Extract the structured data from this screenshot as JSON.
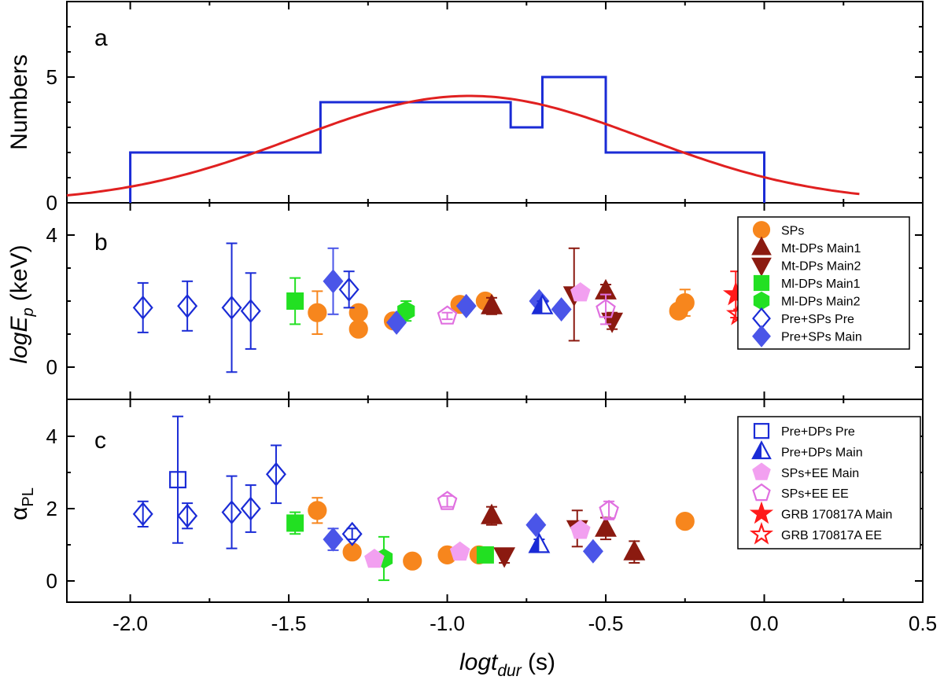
{
  "chart_data": {
    "type": "scatter",
    "x_axis": {
      "label_main": "logt",
      "label_sub": "dur",
      "label_unit": " (s)",
      "range": [
        -2.2,
        0.5
      ],
      "ticks": [
        -2.0,
        -1.5,
        -1.0,
        -0.5,
        0.0,
        0.5
      ],
      "tick_labels": [
        "-2.0",
        "-1.5",
        "-1.0",
        "-0.5",
        "0.0",
        "0.5"
      ]
    },
    "panels": [
      {
        "letter": "a",
        "ylabel": "Numbers",
        "ylim": [
          0,
          8
        ],
        "yticks": [
          0,
          5
        ],
        "histogram": {
          "color": "#1a2bd6",
          "edges": [
            -2.0,
            -1.4,
            -0.8,
            -0.7,
            -0.5,
            0.0
          ],
          "counts": [
            2,
            4,
            3,
            5,
            2
          ]
        },
        "gaussian_fit": {
          "color": "#e02020",
          "amplitude": 4.25,
          "mean": -0.93,
          "sigma": 0.55,
          "x_range": [
            -2.2,
            0.3
          ]
        }
      },
      {
        "letter": "b",
        "ylabel_main": "logE",
        "ylabel_sub": "p",
        "ylabel_unit": " (keV)",
        "ylim": [
          -1,
          5
        ],
        "yticks": [
          0,
          4
        ],
        "legend": [
          "SPs",
          "Mt-DPs Main1",
          "Mt-DPs Main2",
          "Ml-DPs Main1",
          "Ml-DPs Main2",
          "Pre+SPs Pre",
          "Pre+SPs Main"
        ]
      },
      {
        "letter": "c",
        "ylabel_main": "α",
        "ylabel_sub": "PL",
        "ylim": [
          -0.6,
          5
        ],
        "yticks": [
          0,
          2,
          4
        ],
        "legend": [
          "Pre+DPs Pre",
          "Pre+DPs Main",
          "SPs+EE Main",
          "SPs+EE  EE",
          "GRB 170817A Main",
          "GRB 170817A EE"
        ]
      }
    ],
    "series": [
      {
        "name": "SPs",
        "marker": "circle",
        "fill": "#f7861d",
        "stroke": "#f7861d",
        "b": [
          [
            -1.41,
            1.65,
            0.65
          ],
          [
            -1.28,
            1.65,
            0
          ],
          [
            -1.28,
            1.15,
            0
          ],
          [
            -1.17,
            1.4,
            0
          ],
          [
            -0.96,
            1.9,
            0
          ],
          [
            -0.88,
            2.0,
            0
          ],
          [
            -0.27,
            1.7,
            0
          ],
          [
            -0.25,
            1.95,
            0.4
          ]
        ],
        "c": [
          [
            -1.41,
            1.95,
            0.35
          ],
          [
            -1.3,
            0.8,
            0
          ],
          [
            -1.11,
            0.55,
            0
          ],
          [
            -1.0,
            0.72,
            0
          ],
          [
            -0.9,
            0.72,
            0
          ],
          [
            -0.25,
            1.65,
            0
          ]
        ]
      },
      {
        "name": "Mt-DPs Main1",
        "marker": "triangle-up",
        "fill": "#8b1a10",
        "stroke": "#8b1a10",
        "b": [
          [
            -0.86,
            1.85,
            0.25
          ],
          [
            -0.5,
            2.3,
            0.2
          ]
        ],
        "c": [
          [
            -0.86,
            1.8,
            0.25
          ],
          [
            -0.5,
            1.45,
            0.3
          ],
          [
            -0.41,
            0.8,
            0.3
          ]
        ]
      },
      {
        "name": "Mt-DPs Main2",
        "marker": "triangle-down",
        "fill": "#8b1a10",
        "stroke": "#8b1a10",
        "b": [
          [
            -0.6,
            2.2,
            1.4
          ],
          [
            -0.48,
            1.4,
            0.25
          ]
        ],
        "c": [
          [
            -0.82,
            0.7,
            0.2
          ],
          [
            -0.59,
            1.45,
            0.5
          ]
        ]
      },
      {
        "name": "Ml-DPs Main1",
        "marker": "square",
        "fill": "#22e022",
        "stroke": "#22e022",
        "b": [
          [
            -1.48,
            2.0,
            0.7
          ]
        ],
        "c": [
          [
            -1.48,
            1.6,
            0.3
          ],
          [
            -0.88,
            0.72,
            0
          ]
        ]
      },
      {
        "name": "Ml-DPs Main2",
        "marker": "hexagon",
        "fill": "#22e022",
        "stroke": "#22e022",
        "b": [
          [
            -1.13,
            1.7,
            0.3
          ]
        ],
        "c": [
          [
            -1.2,
            0.62,
            0.6
          ]
        ]
      },
      {
        "name": "Pre+SPs Pre",
        "marker": "diamond",
        "fill": "none",
        "stroke": "#1a2bd6",
        "b": [
          [
            -1.96,
            1.8,
            0.75
          ],
          [
            -1.82,
            1.85,
            0.75
          ],
          [
            -1.68,
            1.8,
            1.95
          ],
          [
            -1.62,
            1.7,
            1.15
          ],
          [
            -1.31,
            2.35,
            0.55
          ]
        ],
        "c": [
          [
            -1.96,
            1.85,
            0.35
          ],
          [
            -1.82,
            1.8,
            0.35
          ],
          [
            -1.68,
            1.9,
            1.0
          ],
          [
            -1.62,
            2.0,
            0.65
          ],
          [
            -1.54,
            2.95,
            0.8
          ],
          [
            -1.3,
            1.3,
            0.15
          ]
        ]
      },
      {
        "name": "Pre+SPs Main",
        "marker": "diamond",
        "fill": "#4a55e8",
        "stroke": "#4a55e8",
        "b": [
          [
            -1.36,
            2.6,
            1.0
          ],
          [
            -1.16,
            1.35,
            0.15
          ],
          [
            -0.94,
            1.85,
            0.15
          ],
          [
            -0.71,
            2.0,
            0.15
          ],
          [
            -0.64,
            1.75,
            0.15
          ]
        ],
        "c": [
          [
            -1.36,
            1.15,
            0.3
          ],
          [
            -0.72,
            1.55,
            0
          ],
          [
            -0.54,
            0.82,
            0
          ]
        ]
      },
      {
        "name": "Pre+DPs Pre",
        "marker": "square",
        "fill": "none",
        "stroke": "#1a2bd6",
        "c": [
          [
            -1.85,
            2.8,
            1.75
          ]
        ]
      },
      {
        "name": "Pre+DPs Main",
        "marker": "triangle-half",
        "fill": "#1a2bd6",
        "stroke": "#1a2bd6",
        "b": [
          [
            -0.7,
            1.85,
            0.15
          ]
        ],
        "c": [
          [
            -0.71,
            1.0,
            0.15
          ]
        ]
      },
      {
        "name": "SPs+EE Main",
        "marker": "pentagon",
        "fill": "#f2a0f0",
        "stroke": "#f2a0f0",
        "b": [
          [
            -0.58,
            2.25,
            0.15
          ]
        ],
        "c": [
          [
            -1.23,
            0.6,
            0.1
          ],
          [
            -0.96,
            0.8,
            0.1
          ],
          [
            -0.58,
            1.4,
            0.15
          ]
        ]
      },
      {
        "name": "SPs+EE  EE",
        "marker": "pentagon",
        "fill": "none",
        "stroke": "#e070e0",
        "b": [
          [
            -1.0,
            1.55,
            0.1
          ],
          [
            -0.5,
            1.75,
            0.45
          ]
        ],
        "c": [
          [
            -1.0,
            2.2,
            0.15
          ],
          [
            -0.49,
            1.95,
            0.25
          ]
        ]
      },
      {
        "name": "GRB 170817A Main",
        "marker": "star",
        "fill": "#ff1a1a",
        "stroke": "#ff1a1a",
        "b": [
          [
            -0.09,
            2.2,
            0.7
          ]
        ]
      },
      {
        "name": "GRB 170817A EE",
        "marker": "star",
        "fill": "none",
        "stroke": "#ff1a1a",
        "b": [
          [
            -0.08,
            1.6,
            0.15
          ]
        ]
      }
    ]
  }
}
